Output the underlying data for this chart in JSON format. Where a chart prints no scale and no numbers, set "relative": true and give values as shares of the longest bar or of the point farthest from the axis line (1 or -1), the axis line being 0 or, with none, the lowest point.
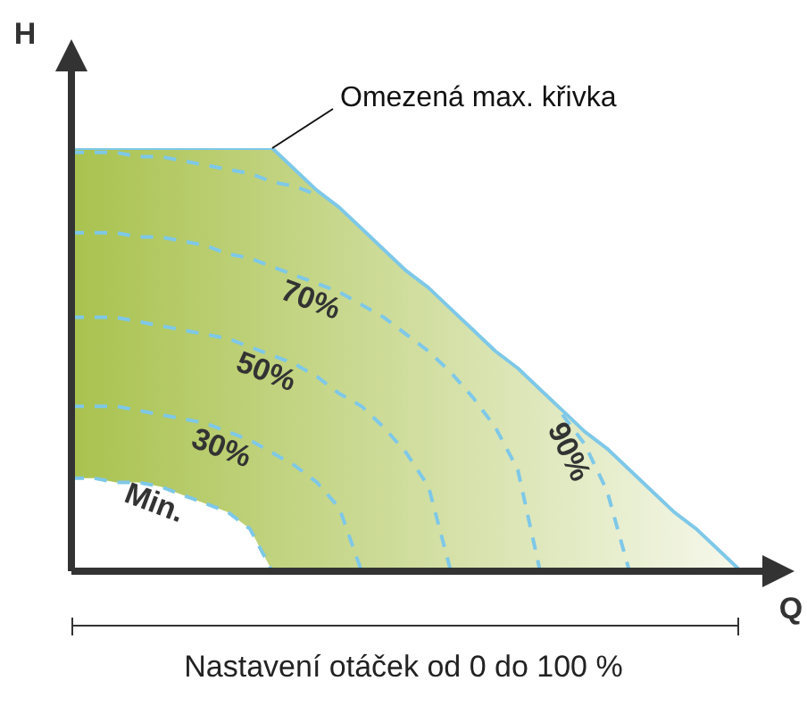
{
  "chart_data": {
    "type": "line",
    "relative": true,
    "xlabel": "Q",
    "ylabel": "H",
    "categories": [
      null,
      null,
      null,
      null,
      null,
      null,
      null,
      null,
      null,
      null,
      null,
      null,
      null,
      null,
      null,
      null,
      null,
      null,
      null,
      null,
      null,
      null,
      null,
      null,
      null,
      null,
      null,
      null,
      null,
      null,
      null
    ],
    "series": [
      {
        "name": "Omezená max. křivka",
        "type": "area",
        "color": "#a9c24e",
        "line_style": "solid",
        "values": [
          1,
          1,
          1,
          1,
          1,
          1,
          1,
          1,
          1,
          1,
          0.95,
          0.9,
          0.86,
          0.81,
          0.76,
          0.71,
          0.67,
          0.62,
          0.57,
          0.52,
          0.48,
          0.43,
          0.38,
          0.33,
          0.29,
          0.24,
          0.19,
          0.14,
          0.1,
          0.05,
          0
        ]
      },
      {
        "name": "Min.",
        "type": "area",
        "color": "#ffffff",
        "line_style": "dashed",
        "values": [
          0.22,
          0.22,
          0.21,
          0.21,
          0.2,
          0.18,
          0.16,
          0.14,
          0.1,
          0,
          null,
          null,
          null,
          null,
          null,
          null,
          null,
          null,
          null,
          null,
          null,
          null,
          null,
          null,
          null,
          null,
          null,
          null,
          null,
          null,
          null
        ]
      },
      {
        "name": "30%",
        "type": "line",
        "color": "#7ec8e8",
        "line_style": "dashed",
        "values": [
          0.39,
          0.39,
          0.39,
          0.38,
          0.37,
          0.36,
          0.35,
          0.33,
          0.31,
          0.28,
          0.25,
          0.21,
          0.15,
          0,
          null,
          null,
          null,
          null,
          null,
          null,
          null,
          null,
          null,
          null,
          null,
          null,
          null,
          null,
          null,
          null,
          null
        ]
      },
      {
        "name": "50%",
        "type": "line",
        "color": "#7ec8e8",
        "line_style": "dashed",
        "values": [
          0.6,
          0.6,
          0.6,
          0.59,
          0.58,
          0.57,
          0.56,
          0.55,
          0.53,
          0.51,
          0.49,
          0.46,
          0.42,
          0.39,
          0.34,
          0.28,
          0.2,
          0,
          null,
          null,
          null,
          null,
          null,
          null,
          null,
          null,
          null,
          null,
          null,
          null,
          null
        ]
      },
      {
        "name": "70%",
        "type": "line",
        "color": "#7ec8e8",
        "line_style": "dashed",
        "values": [
          0.8,
          0.8,
          0.8,
          0.79,
          0.79,
          0.78,
          0.77,
          0.75,
          0.74,
          0.72,
          0.7,
          0.68,
          0.66,
          0.63,
          0.6,
          0.56,
          0.52,
          0.47,
          0.41,
          0.34,
          0.24,
          0,
          null,
          null,
          null,
          null,
          null,
          null,
          null,
          null,
          null
        ]
      },
      {
        "name": "90%",
        "type": "line",
        "color": "#7ec8e8",
        "line_style": "dashed",
        "values": [
          0.99,
          0.99,
          0.99,
          0.98,
          0.98,
          0.97,
          0.96,
          0.95,
          0.94,
          0.92,
          0.91,
          0.89,
          null,
          null,
          null,
          null,
          null,
          null,
          null,
          null,
          null,
          null,
          0.37,
          0.3,
          0.19,
          0,
          null,
          null,
          null,
          null,
          null
        ]
      }
    ],
    "annotations": [
      "Nastavení otáček od 0 do 100 %"
    ]
  }
}
